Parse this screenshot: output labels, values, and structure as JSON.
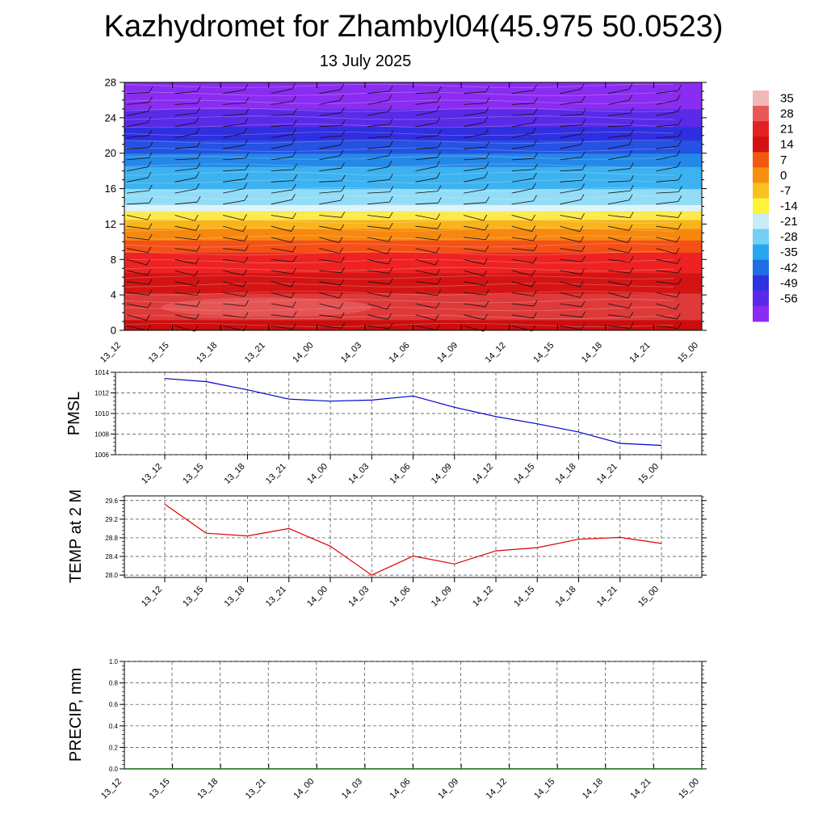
{
  "title": "Kazhydromet for Zhambyl04(45.975 50.0523)",
  "subtitle": "13 July 2025",
  "chart_data": [
    {
      "type": "heatmap",
      "name": "vertical-profile",
      "x_ticks": [
        "13_12",
        "13_15",
        "13_18",
        "13_21",
        "14_00",
        "14_03",
        "14_06",
        "14_09",
        "14_12",
        "14_15",
        "14_18",
        "14_21",
        "15_00"
      ],
      "y_ticks": [
        0,
        4,
        8,
        12,
        16,
        20,
        24,
        28
      ],
      "ylim": [
        0,
        28
      ],
      "colorbar": {
        "labels": [
          35,
          28,
          21,
          14,
          7,
          0,
          -7,
          -14,
          -21,
          -28,
          -35,
          -42,
          -49,
          -56
        ],
        "colors": [
          "#f2b8b8",
          "#e95858",
          "#e22222",
          "#d41010",
          "#f05a10",
          "#f7900e",
          "#f9c020",
          "#fff23a",
          "#c8ecf8",
          "#74d0f4",
          "#27a6ee",
          "#1f6ee6",
          "#2d33e0",
          "#5a2ae8",
          "#8a2cf2"
        ]
      },
      "layers": [
        {
          "from": 0,
          "to": 1.2,
          "color": "#cc0d0d"
        },
        {
          "from": 1.2,
          "to": 4.2,
          "color": "#de3a3a"
        },
        {
          "from": 4.2,
          "to": 6.5,
          "color": "#d41414"
        },
        {
          "from": 6.5,
          "to": 8.8,
          "color": "#ee2222"
        },
        {
          "from": 8.8,
          "to": 10.2,
          "color": "#f45018"
        },
        {
          "from": 10.2,
          "to": 11.5,
          "color": "#f7880e"
        },
        {
          "from": 11.5,
          "to": 12.5,
          "color": "#f9b41c"
        },
        {
          "from": 12.5,
          "to": 13.5,
          "color": "#fce94a"
        },
        {
          "from": 13.5,
          "to": 14.2,
          "color": "#dff3fa"
        },
        {
          "from": 14.2,
          "to": 16,
          "color": "#92dcf6"
        },
        {
          "from": 16,
          "to": 18.5,
          "color": "#3cb2f0"
        },
        {
          "from": 18.5,
          "to": 20,
          "color": "#2488e8"
        },
        {
          "from": 20,
          "to": 21.5,
          "color": "#2452e2"
        },
        {
          "from": 21.5,
          "to": 23,
          "color": "#2f2ee0"
        },
        {
          "from": 23,
          "to": 25,
          "color": "#5a2ae8"
        },
        {
          "from": 25,
          "to": 28,
          "color": "#8a2cf2"
        }
      ]
    },
    {
      "type": "line",
      "name": "pmsl",
      "ylabel": "PMSL",
      "categories": [
        "13_12",
        "13_15",
        "13_18",
        "13_21",
        "14_00",
        "14_03",
        "14_06",
        "14_09",
        "14_12",
        "14_15",
        "14_18",
        "14_21",
        "15_00"
      ],
      "values": [
        1013.4,
        1013.1,
        1012.3,
        1011.4,
        1011.2,
        1011.3,
        1011.7,
        1010.6,
        1009.7,
        1009.0,
        1008.2,
        1007.1,
        1006.9
      ],
      "ylim": [
        1006,
        1014
      ],
      "y_ticks": [
        1006,
        1008,
        1010,
        1012,
        1014
      ],
      "color": "#0000cc",
      "grid": true
    },
    {
      "type": "line",
      "name": "temp2m",
      "ylabel": "TEMP at 2 M",
      "categories": [
        "13_12",
        "13_15",
        "13_18",
        "13_21",
        "14_00",
        "14_03",
        "14_06",
        "14_09",
        "14_12",
        "14_15",
        "14_18",
        "14_21",
        "15_00"
      ],
      "values": [
        29.52,
        28.9,
        28.84,
        29.0,
        28.62,
        28.0,
        28.41,
        28.24,
        28.52,
        28.59,
        28.77,
        28.81,
        28.68
      ],
      "ylim": [
        27.95,
        29.7
      ],
      "y_ticks": [
        "28.0",
        "28.4",
        "28.8",
        "29.2",
        "29.6"
      ],
      "color": "#dd0000",
      "grid": true
    },
    {
      "type": "line",
      "name": "precip",
      "ylabel": "PRECIP, mm",
      "categories": [
        "13_12",
        "13_15",
        "13_18",
        "13_21",
        "14_00",
        "14_03",
        "14_06",
        "14_09",
        "14_12",
        "14_15",
        "14_18",
        "14_21",
        "15_00"
      ],
      "values": [
        0,
        0,
        0,
        0,
        0,
        0,
        0,
        0,
        0,
        0,
        0,
        0,
        0
      ],
      "ylim": [
        0,
        1
      ],
      "y_ticks": [
        "0.0",
        "0.2",
        "0.4",
        "0.6",
        "0.8",
        "1.0"
      ],
      "color": "#0a6a0a",
      "grid": true
    }
  ]
}
